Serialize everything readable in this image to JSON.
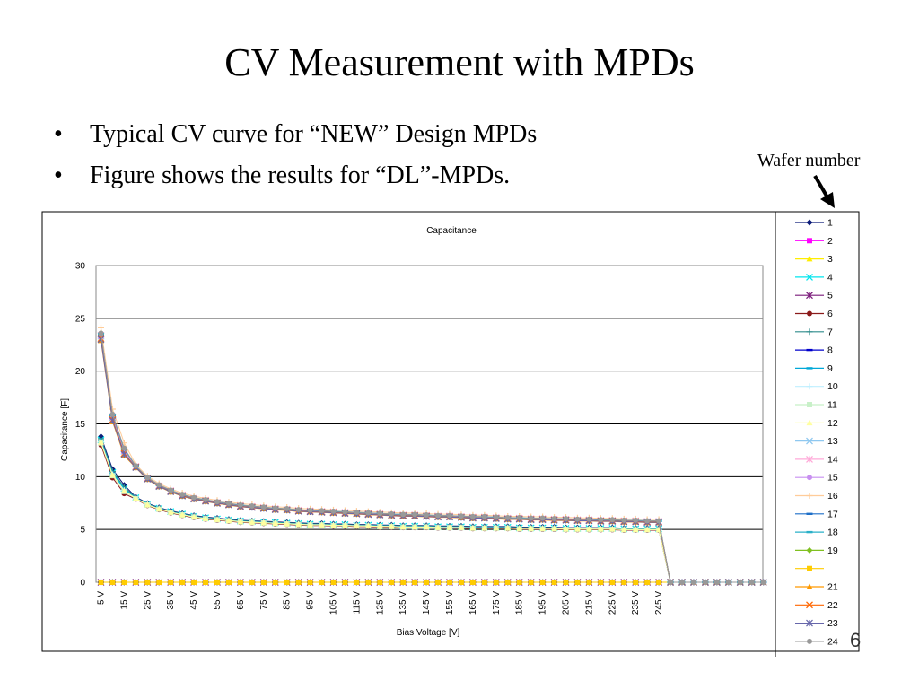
{
  "slide": {
    "title": "CV Measurement with MPDs",
    "bullets": [
      "Typical CV curve for “NEW” Design MPDs",
      "Figure shows the results for “DL”-MPDs."
    ],
    "annotation": "Wafer number",
    "page_number": "6"
  },
  "chart_data": {
    "type": "line",
    "title": "Capacitance",
    "xlabel": "Bias Voltage [V]",
    "ylabel": "Capacitance [F]",
    "ylim": [
      0,
      30
    ],
    "yticks": [
      0,
      5,
      10,
      15,
      20,
      25,
      30
    ],
    "grid": "horizontal",
    "legend_position": "right",
    "x_tick_labels": [
      "5 V",
      "15 V",
      "25 V",
      "35 V",
      "45 V",
      "55 V",
      "65 V",
      "75 V",
      "85 V",
      "95 V",
      "105 V",
      "115 V",
      "125 V",
      "135 V",
      "145 V",
      "155 V",
      "165 V",
      "175 V",
      "185 V",
      "195 V",
      "205 V",
      "215 V",
      "225 V",
      "235 V",
      "245 V"
    ],
    "x_volts": [
      5,
      10,
      15,
      20,
      25,
      30,
      35,
      40,
      45,
      50,
      55,
      60,
      65,
      70,
      75,
      80,
      85,
      90,
      95,
      100,
      105,
      110,
      115,
      120,
      125,
      130,
      135,
      140,
      145,
      150,
      155,
      160,
      165,
      170,
      175,
      180,
      185,
      190,
      195,
      200,
      205,
      210,
      215,
      220,
      225,
      230,
      235,
      240,
      245,
      250,
      255,
      260,
      265,
      270,
      275,
      280,
      285,
      290
    ],
    "curve_families": {
      "high": [
        23.5,
        15.8,
        12.6,
        11.0,
        9.9,
        9.2,
        8.7,
        8.3,
        8.0,
        7.8,
        7.6,
        7.45,
        7.3,
        7.2,
        7.1,
        7.0,
        6.95,
        6.85,
        6.8,
        6.75,
        6.7,
        6.65,
        6.6,
        6.55,
        6.5,
        6.45,
        6.4,
        6.4,
        6.35,
        6.3,
        6.3,
        6.25,
        6.2,
        6.2,
        6.15,
        6.1,
        6.1,
        6.05,
        6.05,
        6.0,
        6.0,
        5.95,
        5.95,
        5.9,
        5.9,
        5.85,
        5.85,
        5.8,
        5.8,
        0,
        0,
        0,
        0,
        0,
        0,
        0,
        0,
        0
      ],
      "low": [
        13.5,
        10.4,
        8.9,
        8.0,
        7.4,
        7.0,
        6.7,
        6.45,
        6.25,
        6.1,
        6.0,
        5.9,
        5.8,
        5.75,
        5.7,
        5.65,
        5.6,
        5.55,
        5.5,
        5.5,
        5.45,
        5.45,
        5.4,
        5.4,
        5.35,
        5.35,
        5.3,
        5.3,
        5.3,
        5.25,
        5.25,
        5.25,
        5.2,
        5.2,
        5.2,
        5.2,
        5.15,
        5.15,
        5.15,
        5.15,
        5.1,
        5.1,
        5.1,
        5.1,
        5.1,
        5.05,
        5.05,
        5.05,
        5.05,
        0,
        0,
        0,
        0,
        0,
        0,
        0,
        0,
        0
      ],
      "zero": [
        0,
        0,
        0,
        0,
        0,
        0,
        0,
        0,
        0,
        0,
        0,
        0,
        0,
        0,
        0,
        0,
        0,
        0,
        0,
        0,
        0,
        0,
        0,
        0,
        0,
        0,
        0,
        0,
        0,
        0,
        0,
        0,
        0,
        0,
        0,
        0,
        0,
        0,
        0,
        0,
        0,
        0,
        0,
        0,
        0,
        0,
        0,
        0,
        0,
        0,
        0,
        0,
        0,
        0,
        0,
        0,
        0,
        0
      ]
    },
    "series": [
      {
        "name": "1",
        "color": "#0b1a78",
        "marker": "diamond",
        "family": "low",
        "offset": 0.3
      },
      {
        "name": "2",
        "color": "#ff00ff",
        "marker": "square",
        "family": "zero",
        "offset": 0
      },
      {
        "name": "3",
        "color": "#ffee00",
        "marker": "triangle",
        "family": "zero",
        "offset": 0
      },
      {
        "name": "4",
        "color": "#00e5ee",
        "marker": "x",
        "family": "low",
        "offset": 0.0
      },
      {
        "name": "5",
        "color": "#7a1a7a",
        "marker": "star",
        "family": "zero",
        "offset": 0
      },
      {
        "name": "6",
        "color": "#8b1a1a",
        "marker": "circle",
        "family": "low",
        "offset": -0.5
      },
      {
        "name": "7",
        "color": "#2e8b8b",
        "marker": "plus",
        "family": "low",
        "offset": 0.1
      },
      {
        "name": "8",
        "color": "#0000cc",
        "marker": "dash",
        "family": "zero",
        "offset": 0
      },
      {
        "name": "9",
        "color": "#00a8d8",
        "marker": "dash",
        "family": "low",
        "offset": -0.1
      },
      {
        "name": "10",
        "color": "#bfefff",
        "marker": "plus",
        "family": "low",
        "offset": -0.2
      },
      {
        "name": "11",
        "color": "#c8f0c8",
        "marker": "square",
        "family": "low",
        "offset": -0.3
      },
      {
        "name": "12",
        "color": "#ffffa0",
        "marker": "triangle",
        "family": "low",
        "offset": -0.25
      },
      {
        "name": "13",
        "color": "#8fc8f0",
        "marker": "x",
        "family": "high",
        "offset": -0.2
      },
      {
        "name": "14",
        "color": "#ffa8d8",
        "marker": "star",
        "family": "high",
        "offset": -0.1
      },
      {
        "name": "15",
        "color": "#c88ff0",
        "marker": "circle",
        "family": "high",
        "offset": -0.3
      },
      {
        "name": "16",
        "color": "#ffcc99",
        "marker": "plus",
        "family": "high",
        "offset": 0.6
      },
      {
        "name": "17",
        "color": "#1e6fc8",
        "marker": "dash",
        "family": "high",
        "offset": 0.0
      },
      {
        "name": "18",
        "color": "#2ab0c8",
        "marker": "dash",
        "family": "high",
        "offset": 0.05
      },
      {
        "name": "19",
        "color": "#80c020",
        "marker": "diamond",
        "family": "zero",
        "offset": 0
      },
      {
        "name": "",
        "color": "#ffcc00",
        "marker": "square",
        "family": "zero",
        "offset": 0
      },
      {
        "name": "21",
        "color": "#ff9900",
        "marker": "triangle",
        "family": "high",
        "offset": -0.6
      },
      {
        "name": "22",
        "color": "#ff6600",
        "marker": "x",
        "family": "high",
        "offset": -0.4
      },
      {
        "name": "23",
        "color": "#6666aa",
        "marker": "star",
        "family": "high",
        "offset": -0.5
      },
      {
        "name": "24",
        "color": "#999999",
        "marker": "circle",
        "family": "high",
        "offset": 0.1
      }
    ]
  }
}
